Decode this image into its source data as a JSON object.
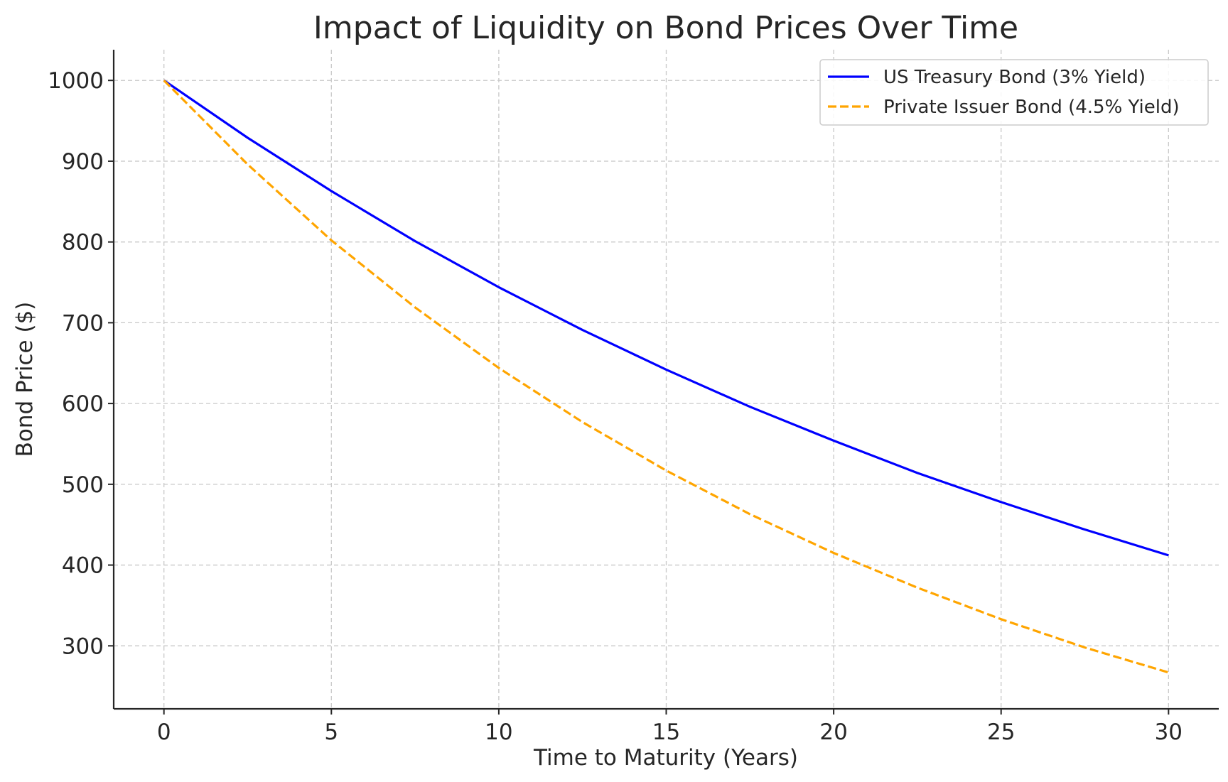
{
  "chart_data": {
    "type": "line",
    "title": "Impact of Liquidity on Bond Prices Over Time",
    "xlabel": "Time to Maturity (Years)",
    "ylabel": "Bond Price ($)",
    "xlim": [
      -1.5,
      31.5
    ],
    "ylim": [
      222,
      1038
    ],
    "xticks": [
      0,
      5,
      10,
      15,
      20,
      25,
      30
    ],
    "yticks": [
      300,
      400,
      500,
      600,
      700,
      800,
      900,
      1000
    ],
    "grid": true,
    "legend_position": "top-right",
    "x": [
      0,
      2.5,
      5,
      7.5,
      10,
      12.5,
      15,
      17.5,
      20,
      22.5,
      25,
      27.5,
      30
    ],
    "series": [
      {
        "name": "US Treasury Bond (3% Yield)",
        "color": "#0000ff",
        "style": "solid",
        "values": [
          1000,
          929,
          863,
          801,
          744,
          691,
          642,
          596,
          554,
          514,
          478,
          444,
          412
        ]
      },
      {
        "name": "Private Issuer Bond (4.5% Yield)",
        "color": "#ffa500",
        "style": "dashed",
        "values": [
          1000,
          896,
          802,
          719,
          644,
          577,
          517,
          463,
          415,
          372,
          333,
          298,
          267
        ]
      }
    ]
  }
}
